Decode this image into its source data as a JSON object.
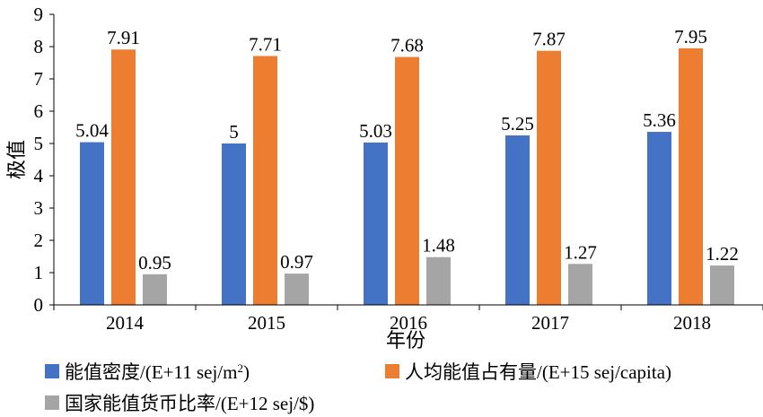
{
  "chart_data": {
    "type": "bar",
    "categories": [
      "2014",
      "2015",
      "2016",
      "2017",
      "2018"
    ],
    "series": [
      {
        "name": "能值密度/(E+11 sej/m²)",
        "name_prefix": "能值密度/(E+11 sej/m",
        "name_sup": "2",
        "name_suffix": ")",
        "color": "#4472C4",
        "values": [
          5.04,
          5,
          5.03,
          5.25,
          5.36
        ]
      },
      {
        "name": "人均能值占有量/(E+15 sej/capita)",
        "color": "#ED7D31",
        "values": [
          7.91,
          7.71,
          7.68,
          7.87,
          7.95
        ]
      },
      {
        "name": "国家能值货币比率/(E+12 sej/$)",
        "color": "#A5A5A5",
        "values": [
          0.95,
          0.97,
          1.48,
          1.27,
          1.22
        ]
      }
    ],
    "data_labels": [
      [
        "5.04",
        "5",
        "5.03",
        "5.25",
        "5.36"
      ],
      [
        "7.91",
        "7.71",
        "7.68",
        "7.87",
        "7.95"
      ],
      [
        "0.95",
        "0.97",
        "1.48",
        "1.27",
        "1.22"
      ]
    ],
    "y_ticks": [
      "0",
      "1",
      "2",
      "3",
      "4",
      "5",
      "6",
      "7",
      "8",
      "9"
    ],
    "ylim": [
      0,
      9
    ],
    "xlabel": "年份",
    "ylabel": "极值",
    "grid": false,
    "legend_position": "bottom"
  }
}
